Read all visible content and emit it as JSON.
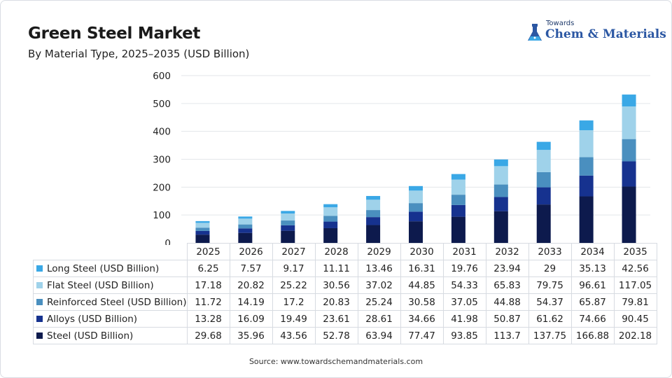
{
  "title": "Green Steel Market",
  "subtitle": "By Material Type, 2025–2035 (USD Billion)",
  "logo": {
    "top": "Towards",
    "name": "Chem & Materials"
  },
  "source": "Source: www.towardschemandmaterials.com",
  "chart_data": {
    "type": "bar",
    "stacked": true,
    "categories": [
      "2025",
      "2026",
      "2027",
      "2028",
      "2029",
      "2030",
      "2031",
      "2032",
      "2033",
      "2034",
      "2035"
    ],
    "ylim": [
      0,
      600
    ],
    "yticks": [
      0,
      100,
      200,
      300,
      400,
      500,
      600
    ],
    "grid": true,
    "series": [
      {
        "name": "Steel (USD Billion)",
        "color": "#0d1a4d",
        "labels": [
          "29.68",
          "35.96",
          "43.56",
          "52.78",
          "63.94",
          "77.47",
          "93.85",
          "113.7",
          "137.75",
          "166.88",
          "202.18"
        ],
        "values": [
          29.68,
          35.96,
          43.56,
          52.78,
          63.94,
          77.47,
          93.85,
          113.7,
          137.75,
          166.88,
          202.18
        ]
      },
      {
        "name": "Alloys (USD Billion)",
        "color": "#16328f",
        "labels": [
          "13.28",
          "16.09",
          "19.49",
          "23.61",
          "28.61",
          "34.66",
          "41.98",
          "50.87",
          "61.62",
          "74.66",
          "90.45"
        ],
        "values": [
          13.28,
          16.09,
          19.49,
          23.61,
          28.61,
          34.66,
          41.98,
          50.87,
          61.62,
          74.66,
          90.45
        ]
      },
      {
        "name": "Reinforced Steel (USD Billion)",
        "color": "#4a8fbf",
        "labels": [
          "11.72",
          "14.19",
          "17.2",
          "20.83",
          "25.24",
          "30.58",
          "37.05",
          "44.88",
          "54.37",
          "65.87",
          "79.81"
        ],
        "values": [
          11.72,
          14.19,
          17.2,
          20.83,
          25.24,
          30.58,
          37.05,
          44.88,
          54.37,
          65.87,
          79.81
        ]
      },
      {
        "name": "Flat Steel (USD Billion)",
        "color": "#9fd2ea",
        "labels": [
          "17.18",
          "20.82",
          "25.22",
          "30.56",
          "37.02",
          "44.85",
          "54.33",
          "65.83",
          "79.75",
          "96.61",
          "117.05"
        ],
        "values": [
          17.18,
          20.82,
          25.22,
          30.56,
          37.02,
          44.85,
          54.33,
          65.83,
          79.75,
          96.61,
          117.05
        ]
      },
      {
        "name": "Long Steel (USD Billion)",
        "color": "#3aa8e6",
        "labels": [
          "6.25",
          "7.57",
          "9.17",
          "11.11",
          "13.46",
          "16.31",
          "19.76",
          "23.94",
          "29",
          "35.13",
          "42.56"
        ],
        "values": [
          6.25,
          7.57,
          9.17,
          11.11,
          13.46,
          16.31,
          19.76,
          23.94,
          29,
          35.13,
          42.56
        ]
      }
    ]
  }
}
